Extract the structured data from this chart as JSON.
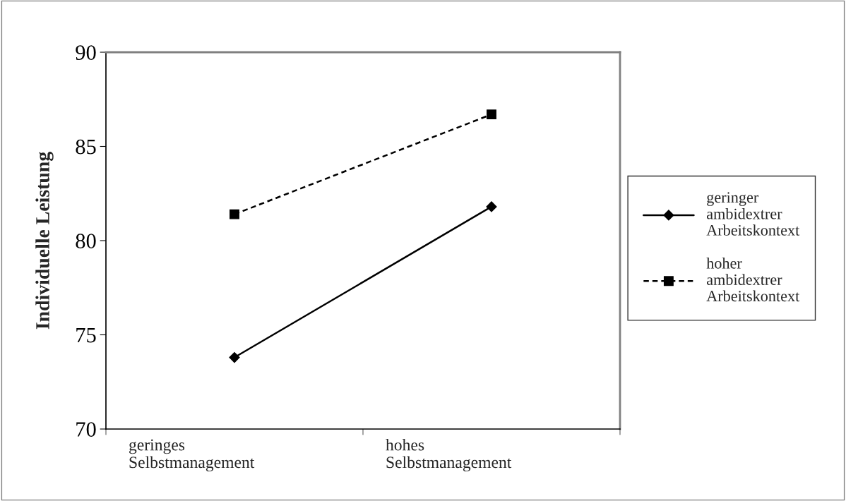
{
  "chart_data": {
    "type": "line",
    "ylabel": "Individuelle Leistung",
    "categories": [
      "geringes\nSelbstmanagement",
      "hohes\nSelbstmanagement"
    ],
    "series": [
      {
        "name": "geringer\nambidextrer\nArbeitskontext",
        "color": "#000000",
        "values": [
          73.8,
          81.8
        ],
        "marker": "diamond",
        "line_style": "solid"
      },
      {
        "name": "hoher\nambidextrer\nArbeitskontext",
        "color": "#000000",
        "values": [
          81.4,
          86.7
        ],
        "marker": "square",
        "line_style": "dashed"
      }
    ],
    "ylim": [
      70,
      90
    ],
    "yticks": [
      70,
      75,
      80,
      85,
      90
    ],
    "grid": false,
    "legend": "right"
  }
}
